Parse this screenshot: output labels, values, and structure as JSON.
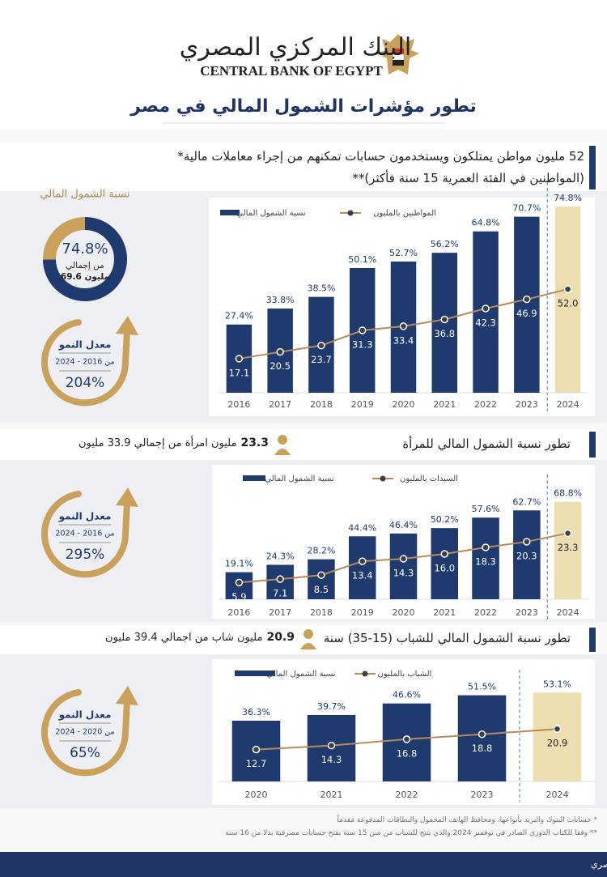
{
  "header": {
    "bank_ar": "البنك المركزي المصري",
    "bank_en": "CENTRAL BANK OF EGYPT",
    "title": "تطور مؤشرات الشمول المالي في مصر"
  },
  "sections": [
    {
      "heading": "52 مليون مواطن يمتلكون ويستخدمون حسابات تمكنهم من إجراء معاملات مالية* (المواطنين في الفئة العمرية 15 سنة فأكثر)**"
    },
    {
      "heading": "تطور نسبة الشمول المالي للمرأة",
      "highlight": "23.3",
      "subheading": "مليون امرأة من إجمالي 33.9 مليون"
    },
    {
      "heading": "تطور نسبة الشمول المالي للشباب (15-35) سنة",
      "highlight": "20.9",
      "subheading": "مليون شاب من اجمالي 39.4 مليون"
    }
  ],
  "growth": [
    {
      "title": "معدل النمو",
      "period": "من 2016 - 2024",
      "value": "204%"
    },
    {
      "title": "معدل النمو",
      "period": "من 2016 - 2024",
      "value": "295%"
    },
    {
      "title": "معدل النمو",
      "period": "من 2020 - 2024",
      "value": "65%"
    }
  ],
  "chart_data": [
    {
      "type": "bar",
      "categories": [
        "2016",
        "2017",
        "2018",
        "2019",
        "2020",
        "2021",
        "2022",
        "2023",
        "2024"
      ],
      "series": [
        {
          "name": "نسبة الشمول المالي",
          "type": "bar",
          "color": "#1f3a6e",
          "colors": [
            "#1f3a6e",
            "#1f3a6e",
            "#1f3a6e",
            "#1f3a6e",
            "#1f3a6e",
            "#1f3a6e",
            "#1f3a6e",
            "#1f3a6e",
            "#ebdfb2"
          ],
          "values": [
            27.4,
            33.8,
            38.5,
            50.1,
            52.7,
            56.2,
            64.8,
            70.7,
            74.8
          ],
          "value_labels": [
            "27.4%",
            "33.8%",
            "38.5%",
            "50.1%",
            "52.7%",
            "56.2%",
            "64.8%",
            "70.7%",
            "74.8%"
          ]
        },
        {
          "name": "المواطنين بالمليون",
          "type": "line",
          "axis": "y2",
          "color": "#b88a5a",
          "values": [
            17.1,
            20.5,
            23.7,
            31.3,
            33.4,
            36.8,
            42.3,
            46.9,
            52.0
          ],
          "value_labels": [
            "17.1",
            "20.5",
            "23.7",
            "31.3",
            "33.4",
            "36.8",
            "42.3",
            "46.9",
            "52.0"
          ]
        }
      ],
      "ylim": [
        0,
        80
      ],
      "y2lim": [
        0,
        100
      ]
    },
    {
      "type": "bar",
      "categories": [
        "2016",
        "2017",
        "2018",
        "2019",
        "2020",
        "2021",
        "2022",
        "2023",
        "2024"
      ],
      "series": [
        {
          "name": "نسبة الشمول المالي",
          "type": "bar",
          "color": "#1f3a6e",
          "colors": [
            "#1f3a6e",
            "#1f3a6e",
            "#1f3a6e",
            "#1f3a6e",
            "#1f3a6e",
            "#1f3a6e",
            "#1f3a6e",
            "#1f3a6e",
            "#ebdfb2"
          ],
          "values": [
            19.1,
            24.3,
            28.2,
            44.4,
            46.4,
            50.2,
            57.6,
            62.7,
            68.8
          ],
          "value_labels": [
            "19.1%",
            "24.3%",
            "28.2%",
            "44.4%",
            "46.4%",
            "50.2%",
            "57.6%",
            "62.7%",
            "68.8%"
          ]
        },
        {
          "name": "السيدات بالمليون",
          "type": "line",
          "axis": "y2",
          "color": "#b88a5a",
          "values": [
            5.9,
            7.1,
            8.5,
            13.4,
            14.3,
            16.0,
            18.3,
            20.3,
            23.3
          ],
          "value_labels": [
            "5.9",
            "7.1",
            "8.5",
            "13.4",
            "14.3",
            "16.0",
            "18.3",
            "20.3",
            "23.3"
          ]
        }
      ],
      "ylim": [
        0,
        80
      ],
      "y2lim": [
        0,
        40
      ]
    },
    {
      "type": "bar",
      "categories": [
        "2020",
        "2021",
        "2022",
        "2023",
        "2024"
      ],
      "series": [
        {
          "name": "نسبة الشمول المالي",
          "type": "bar",
          "color": "#1f3a6e",
          "colors": [
            "#1f3a6e",
            "#1f3a6e",
            "#1f3a6e",
            "#1f3a6e",
            "#ebdfb2"
          ],
          "values": [
            36.3,
            39.7,
            46.6,
            51.5,
            53.1
          ],
          "value_labels": [
            "36.3%",
            "39.7%",
            "46.6%",
            "51.5%",
            "53.1%"
          ]
        },
        {
          "name": "الشباب بالمليون",
          "type": "line",
          "axis": "y2",
          "color": "#b88a5a",
          "values": [
            12.7,
            14.3,
            16.8,
            18.8,
            20.9
          ],
          "value_labels": [
            "12.7",
            "14.3",
            "16.8",
            "18.8",
            "20.9"
          ]
        }
      ],
      "ylim": [
        0,
        60
      ],
      "y2lim": [
        0,
        40
      ]
    },
    {
      "type": "donut",
      "title": "نسبة الشمول المالي",
      "values": [
        74.8
      ],
      "value_labels": [
        "74.8%"
      ],
      "colors": [
        "#1f3a6e"
      ],
      "rest_color": "#c9a15a",
      "annotations": [
        "من إجمالي",
        "69.6 مليون"
      ]
    }
  ],
  "footnotes": [
    "* حسابات البنوك والبريد بأنواعها، ومحافظ الهاتف المحمول والبطاقات المدفوعة مقدماً",
    "** وفقا للكتاب الدوري الصادر في نوفمبر 2024 والذي يتيح للشباب من سن 15 سنة بفتح حسابات مصرفية بدلا من 16 سنة"
  ],
  "source": "المصدر: قاعدة بيانات الشمول المالي – البنك المركزي المصري"
}
